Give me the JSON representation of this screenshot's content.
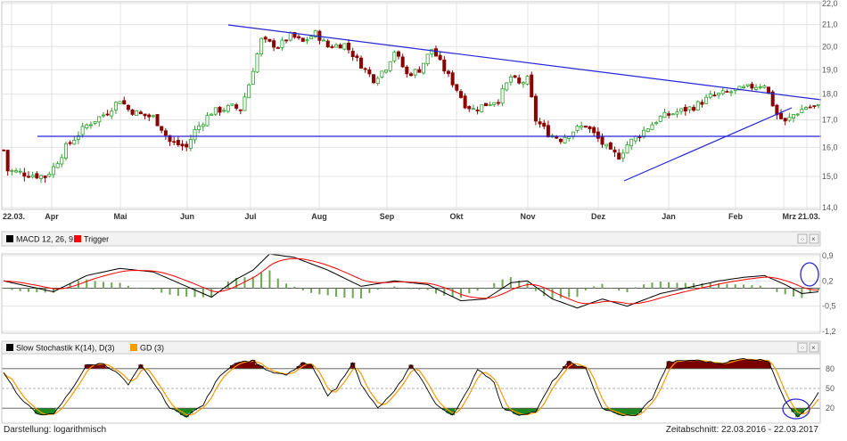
{
  "chart_data": [
    {
      "type": "candlestick",
      "scale": "logarithmic",
      "ylim": [
        14.0,
        22.0
      ],
      "y_ticks": [
        "22,0",
        "21,0",
        "20,0",
        "19,0",
        "18,0",
        "17,0",
        "16,0",
        "15,0",
        "14,0"
      ],
      "x_ticks": [
        "22.03.",
        "Apr",
        "Mai",
        "Jun",
        "Jul",
        "Aug",
        "Sep",
        "Okt",
        "Nov",
        "Dez",
        "Jan",
        "Feb",
        "Mrz",
        "21.03."
      ],
      "price_path": [
        [
          0,
          15.9
        ],
        [
          1,
          15.2
        ],
        [
          5,
          15.1
        ],
        [
          10,
          15.0
        ],
        [
          12,
          15.3
        ],
        [
          15,
          16.0
        ],
        [
          20,
          16.8
        ],
        [
          25,
          17.3
        ],
        [
          28,
          17.8
        ],
        [
          30,
          17.4
        ],
        [
          33,
          17.2
        ],
        [
          36,
          17.1
        ],
        [
          38,
          16.7
        ],
        [
          40,
          16.2
        ],
        [
          44,
          16.0
        ],
        [
          46,
          16.6
        ],
        [
          50,
          17.3
        ],
        [
          55,
          17.5
        ],
        [
          57,
          17.4
        ],
        [
          59,
          18.4
        ],
        [
          62,
          20.3
        ],
        [
          66,
          20.0
        ],
        [
          69,
          20.5
        ],
        [
          72,
          20.2
        ],
        [
          75,
          20.6
        ],
        [
          78,
          20.0
        ],
        [
          82,
          20.1
        ],
        [
          86,
          19.2
        ],
        [
          89,
          18.6
        ],
        [
          92,
          19.1
        ],
        [
          94,
          19.8
        ],
        [
          97,
          18.8
        ],
        [
          100,
          19.0
        ],
        [
          103,
          19.9
        ],
        [
          106,
          19.0
        ],
        [
          109,
          18.2
        ],
        [
          111,
          17.6
        ],
        [
          113,
          17.4
        ],
        [
          116,
          17.6
        ],
        [
          119,
          17.8
        ],
        [
          122,
          18.7
        ],
        [
          124,
          18.4
        ],
        [
          126,
          18.6
        ],
        [
          128,
          17.0
        ],
        [
          131,
          16.5
        ],
        [
          134,
          16.3
        ],
        [
          137,
          16.6
        ],
        [
          140,
          16.8
        ],
        [
          143,
          16.3
        ],
        [
          146,
          15.8
        ],
        [
          148,
          15.7
        ],
        [
          150,
          16.1
        ],
        [
          154,
          16.6
        ],
        [
          158,
          17.1
        ],
        [
          162,
          17.3
        ],
        [
          166,
          17.5
        ],
        [
          170,
          17.9
        ],
        [
          175,
          18.1
        ],
        [
          180,
          18.3
        ],
        [
          183,
          18.4
        ],
        [
          184,
          18.0
        ],
        [
          186,
          17.2
        ],
        [
          188,
          16.9
        ],
        [
          190,
          17.2
        ],
        [
          193,
          17.5
        ],
        [
          196,
          17.5
        ]
      ],
      "annotations": {
        "resistance_line": {
          "from": [
            "Jul",
            21.1
          ],
          "to": [
            "21.03.",
            18.3
          ]
        },
        "horizontal_line": 17.0,
        "support_line": {
          "from": [
            "Dez",
            15.6
          ],
          "to": [
            "Feb",
            18.0
          ]
        }
      }
    },
    {
      "type": "line",
      "title": "MACD 12, 26, 9",
      "series": [
        {
          "name": "MACD 12, 26, 9",
          "color": "#000000"
        },
        {
          "name": "Trigger",
          "color": "#ff0000"
        }
      ],
      "ylim": [
        -1.2,
        0.9
      ],
      "y_ticks": [
        "0,9",
        "0,2",
        "-0,5",
        "-1,2"
      ]
    },
    {
      "type": "line",
      "title": "Slow Stochastik K(14), D(3)",
      "series": [
        {
          "name": "Slow Stochastik K(14), D(3)",
          "color": "#000000"
        },
        {
          "name": "GD (3)",
          "color": "#ff9900"
        }
      ],
      "ylim": [
        0,
        100
      ],
      "y_ticks": [
        "80",
        "50",
        "20"
      ],
      "levels": [
        80,
        50,
        20
      ]
    }
  ],
  "labels": {
    "macd_title": "MACD 12, 26, 9",
    "macd_trigger": "Trigger",
    "stoch_title": "Slow Stochastik K(14), D(3)",
    "stoch_gd": "GD (3)",
    "footer_left": "Darstellung: logarithmisch",
    "footer_right": "Zeitabschnitt: 22.03.2016 - 22.03.2017",
    "y_ticks_main": [
      "22,0",
      "21,0",
      "20,0",
      "19,0",
      "18,0",
      "17,0",
      "16,0",
      "15,0",
      "14,0"
    ],
    "y_ticks_macd": [
      "0,9",
      "0,2",
      "-0,5",
      "-1,2"
    ],
    "y_ticks_stoch": [
      "80",
      "50",
      "20"
    ],
    "x_ticks": [
      "22.03.",
      "Apr",
      "Mai",
      "Jun",
      "Jul",
      "Aug",
      "Sep",
      "Okt",
      "Nov",
      "Dez",
      "Jan",
      "Feb",
      "Mrz",
      "21.03."
    ]
  },
  "colors": {
    "up": "#2ca02c",
    "down": "#8b0000",
    "trend": "#2626d9",
    "macd": "#000000",
    "trigger": "#ff0000",
    "hist": "#6aa84f",
    "stoch_k": "#000000",
    "stoch_d": "#ff9900",
    "overbought": "#7a0000",
    "oversold": "#1e8a1e",
    "highlight": "#2a2ad0"
  }
}
